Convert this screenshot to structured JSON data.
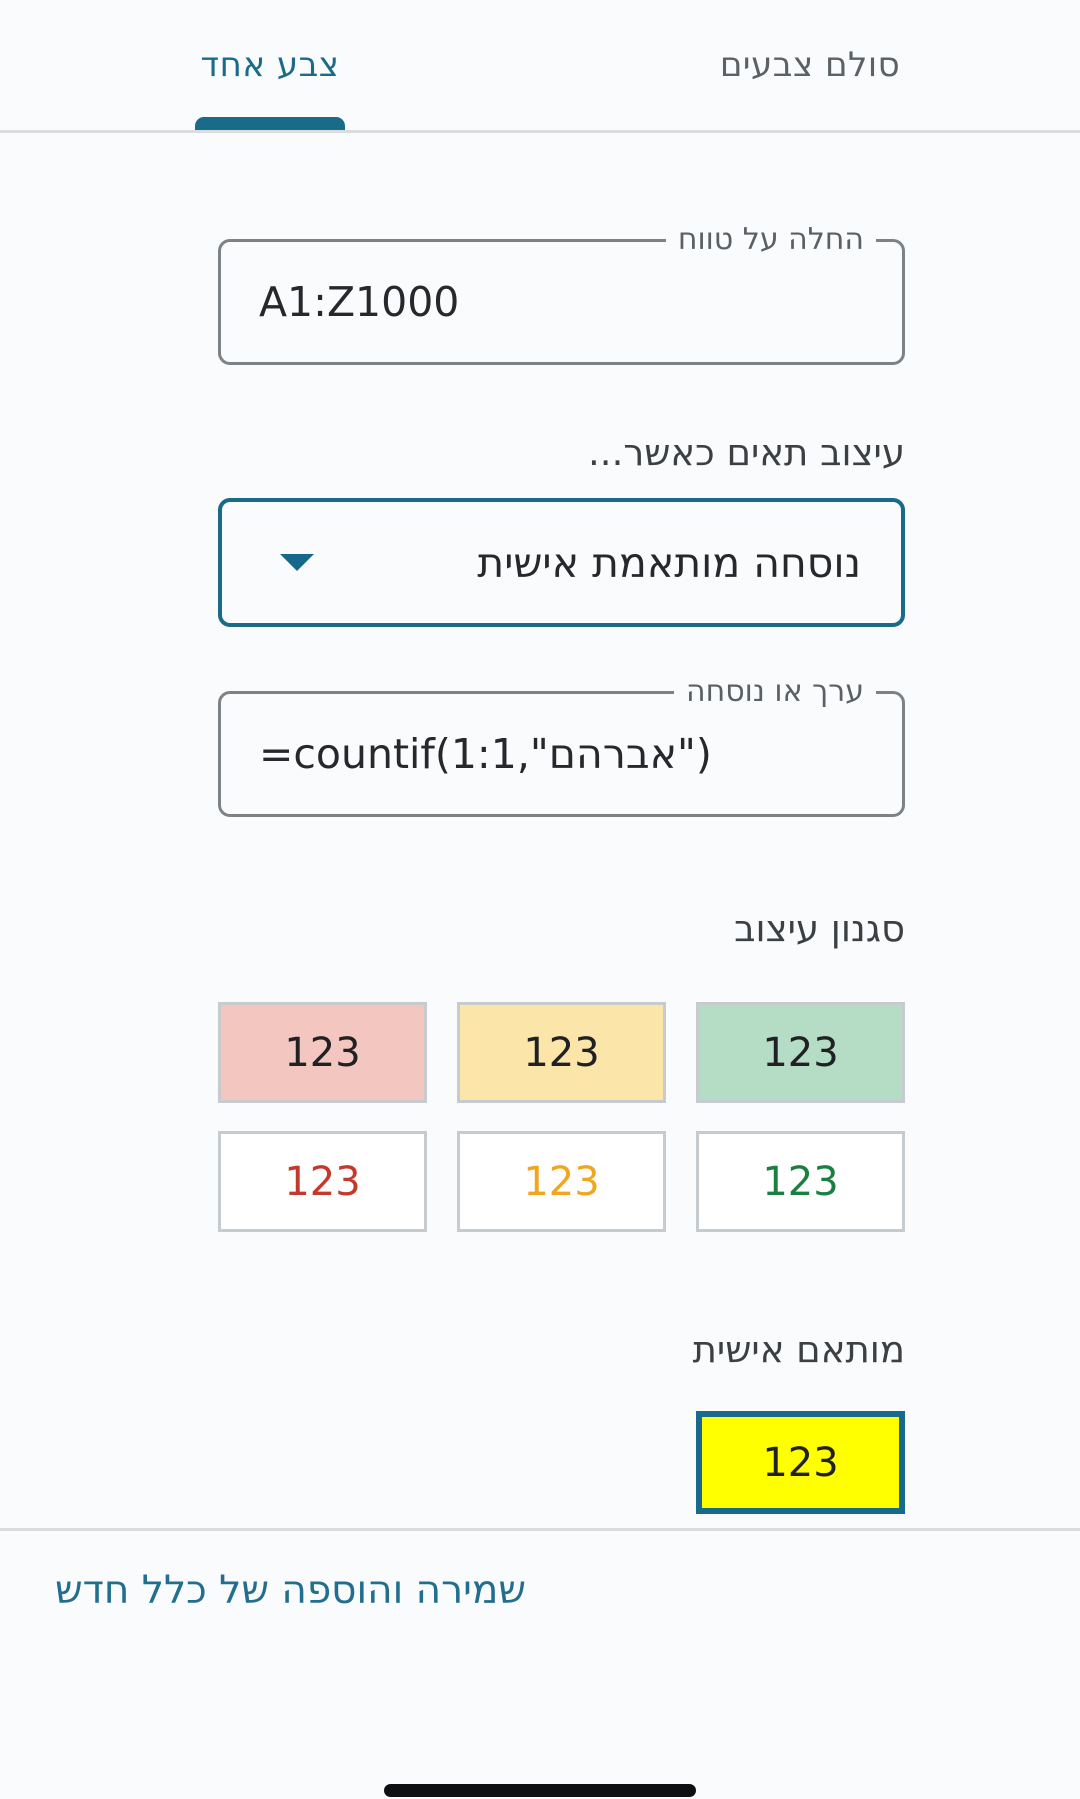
{
  "tabs": {
    "single_color": {
      "label": "צבע אחד",
      "active": true
    },
    "color_scale": {
      "label": "סולם צבעים",
      "active": false
    }
  },
  "range_field": {
    "label": "החלה על טווח",
    "value": "A1:Z1000"
  },
  "condition": {
    "section_label": "עיצוב תאים כאשר...",
    "selected_option": "נוסחה מותאמת אישית"
  },
  "formula_field": {
    "label": "ערך או נוסחה",
    "value": "=countif(1:1,\"אברהם\")"
  },
  "style_section": {
    "label": "סגנון עיצוב",
    "sample_text": "123",
    "presets": [
      {
        "name": "red-fill",
        "bg": "#f4c6c0",
        "text": "#202124"
      },
      {
        "name": "yellow-fill",
        "bg": "#fbe5a8",
        "text": "#202124"
      },
      {
        "name": "green-fill",
        "bg": "#b5dcc4",
        "text": "#202124"
      },
      {
        "name": "red-text",
        "bg": "#ffffff",
        "text": "#c4392c"
      },
      {
        "name": "orange-text",
        "bg": "#ffffff",
        "text": "#f2a61e"
      },
      {
        "name": "green-text",
        "bg": "#ffffff",
        "text": "#1b7f41"
      }
    ],
    "custom_label": "מותאם אישית",
    "custom_swatch": {
      "bg": "#ffff00",
      "text": "#202124",
      "selected": true
    }
  },
  "footer": {
    "save_link": "שמירה והוספה של כלל חדש"
  },
  "colors": {
    "accent_teal": "#1a6b8a",
    "custom_border": "#176a8a",
    "divider": "#d9dde0",
    "background": "#fafbfd"
  }
}
